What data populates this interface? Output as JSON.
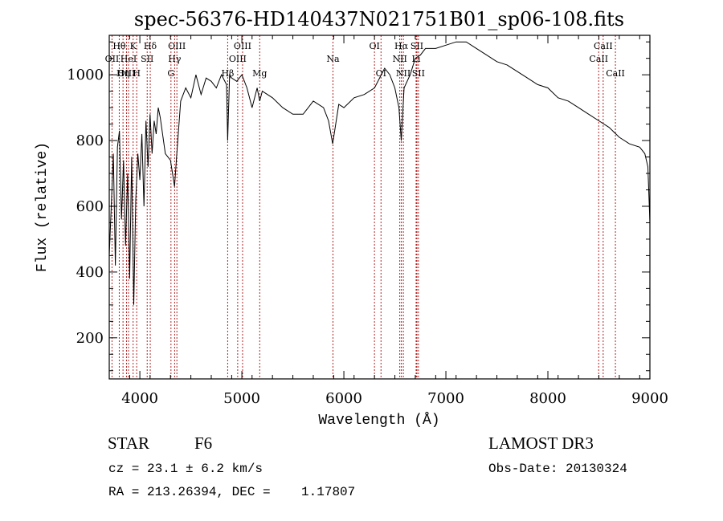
{
  "chart_data": {
    "type": "line",
    "title": "spec-56376-HD140437N021751B01_sp06-108.fits",
    "xlabel": "Wavelength (Å)",
    "ylabel": "Flux (relative)",
    "xlim": [
      3700,
      9000
    ],
    "ylim": [
      75,
      1120
    ],
    "xticks": [
      4000,
      5000,
      6000,
      7000,
      8000,
      9000
    ],
    "yticks": [
      200,
      400,
      600,
      800,
      1000
    ],
    "series": [
      {
        "name": "flux",
        "x": [
          3700,
          3720,
          3740,
          3760,
          3780,
          3800,
          3820,
          3840,
          3860,
          3880,
          3900,
          3920,
          3940,
          3960,
          3980,
          4000,
          4020,
          4040,
          4060,
          4080,
          4100,
          4120,
          4140,
          4160,
          4180,
          4200,
          4250,
          4300,
          4340,
          4360,
          4400,
          4450,
          4500,
          4550,
          4600,
          4650,
          4700,
          4750,
          4800,
          4850,
          4861,
          4880,
          4900,
          4950,
          5000,
          5050,
          5100,
          5150,
          5175,
          5200,
          5300,
          5400,
          5500,
          5600,
          5700,
          5800,
          5850,
          5890,
          5950,
          6000,
          6100,
          6200,
          6300,
          6400,
          6450,
          6500,
          6540,
          6563,
          6590,
          6650,
          6700,
          6750,
          6800,
          6900,
          7000,
          7100,
          7200,
          7300,
          7400,
          7500,
          7600,
          7700,
          7800,
          7900,
          8000,
          8100,
          8200,
          8300,
          8400,
          8500,
          8600,
          8700,
          8800,
          8900,
          8950,
          8980,
          9000
        ],
        "values": [
          450,
          600,
          760,
          420,
          780,
          830,
          560,
          740,
          480,
          700,
          380,
          750,
          300,
          620,
          760,
          680,
          820,
          600,
          860,
          720,
          880,
          760,
          860,
          820,
          900,
          870,
          760,
          740,
          660,
          750,
          920,
          960,
          930,
          1000,
          940,
          990,
          980,
          960,
          1000,
          970,
          800,
          1000,
          990,
          980,
          1000,
          960,
          900,
          960,
          920,
          950,
          930,
          900,
          880,
          880,
          920,
          900,
          860,
          790,
          910,
          900,
          930,
          940,
          960,
          1020,
          1000,
          960,
          900,
          800,
          960,
          1000,
          1050,
          1060,
          1080,
          1080,
          1090,
          1100,
          1100,
          1080,
          1060,
          1040,
          1030,
          1010,
          990,
          970,
          960,
          930,
          920,
          900,
          880,
          860,
          840,
          810,
          790,
          780,
          760,
          720,
          550
        ]
      }
    ],
    "lines": [
      {
        "label": "Hθ",
        "x": 3798,
        "row": 0
      },
      {
        "label": "OII",
        "x": 3727,
        "row": 1
      },
      {
        "label": "OIII",
        "x": 3869,
        "row": 2
      },
      {
        "label": "K",
        "x": 3934,
        "row": 0
      },
      {
        "label": "HeI",
        "x": 3889,
        "row": 1
      },
      {
        "label": "Hη",
        "x": 3835,
        "row": 2
      },
      {
        "label": "H",
        "x": 3969,
        "row": 2
      },
      {
        "label": "SII",
        "x": 4072,
        "row": 1
      },
      {
        "label": "Hδ",
        "x": 4102,
        "row": 0
      },
      {
        "label": "OIII",
        "x": 4363,
        "row": 0
      },
      {
        "label": "Hγ",
        "x": 4341,
        "row": 1
      },
      {
        "label": "G",
        "x": 4305,
        "row": 2
      },
      {
        "label": "OIII",
        "x": 5007,
        "row": 0
      },
      {
        "label": "OIII",
        "x": 4959,
        "row": 1
      },
      {
        "label": "Hβ",
        "x": 4861,
        "row": 2
      },
      {
        "label": "Mg",
        "x": 5175,
        "row": 2
      },
      {
        "label": "Na",
        "x": 5893,
        "row": 1
      },
      {
        "label": "OI",
        "x": 6300,
        "row": 0
      },
      {
        "label": "OI",
        "x": 6364,
        "row": 2
      },
      {
        "label": "Hα",
        "x": 6563,
        "row": 0
      },
      {
        "label": "SII",
        "x": 6716,
        "row": 0
      },
      {
        "label": "NII",
        "x": 6548,
        "row": 1
      },
      {
        "label": "Li",
        "x": 6708,
        "row": 1
      },
      {
        "label": "NII",
        "x": 6583,
        "row": 2
      },
      {
        "label": "SII",
        "x": 6731,
        "row": 2
      },
      {
        "label": "CaII",
        "x": 8542,
        "row": 0
      },
      {
        "label": "CaII",
        "x": 8498,
        "row": 1
      },
      {
        "label": "CaII",
        "x": 8662,
        "row": 2
      }
    ]
  },
  "info": {
    "class_label": "STAR",
    "subclass": "F6",
    "survey": "LAMOST DR3",
    "redshift": "cz = 23.1 ± 6.2 km/s",
    "obs_date": "Obs-Date: 20130324",
    "coords": "RA = 213.26394, DEC =    1.17807"
  }
}
